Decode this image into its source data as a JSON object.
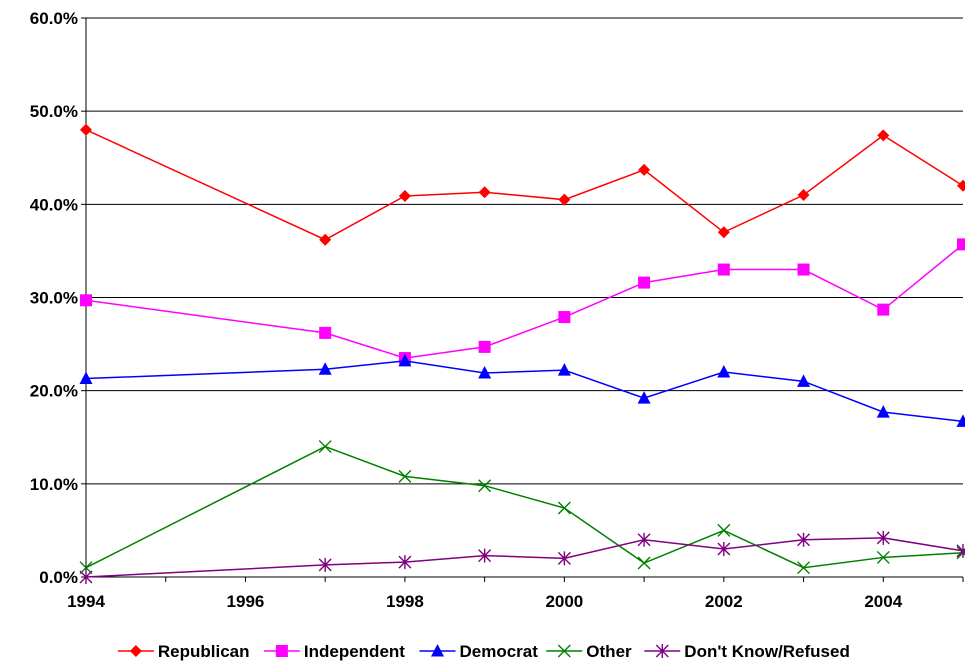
{
  "chart_data": {
    "type": "line",
    "title": "",
    "xlabel": "",
    "ylabel": "",
    "x": [
      1994,
      1997,
      1998,
      1999,
      2000,
      2001,
      2002,
      2003,
      2004,
      2005
    ],
    "xlim": [
      1994,
      2005
    ],
    "x_ticks": [
      1994,
      1996,
      1998,
      2000,
      2002,
      2004
    ],
    "x_tick_labels": [
      "1994",
      "1996",
      "1998",
      "2000",
      "2002",
      "2004"
    ],
    "ylim": [
      0,
      60
    ],
    "y_ticks": [
      0,
      10,
      20,
      30,
      40,
      50,
      60
    ],
    "y_tick_labels": [
      "0.0%",
      "10.0%",
      "20.0%",
      "30.0%",
      "40.0%",
      "50.0%",
      "60.0%"
    ],
    "grid": "horizontal",
    "legend_position": "bottom",
    "series": [
      {
        "name": "Republican",
        "color": "#ff0000",
        "marker": "diamond",
        "values": [
          48.0,
          36.2,
          40.9,
          41.3,
          40.5,
          43.7,
          37.0,
          41.0,
          47.4,
          42.0
        ]
      },
      {
        "name": "Independent",
        "color": "#ff00ff",
        "marker": "square",
        "values": [
          29.7,
          26.2,
          23.5,
          24.7,
          27.9,
          31.6,
          33.0,
          33.0,
          28.7,
          35.7
        ]
      },
      {
        "name": "Democrat",
        "color": "#0000ff",
        "marker": "triangle",
        "values": [
          21.3,
          22.3,
          23.2,
          21.9,
          22.2,
          19.2,
          22.0,
          21.0,
          17.7,
          16.7
        ]
      },
      {
        "name": "Other",
        "color": "#008000",
        "marker": "x",
        "values": [
          1.0,
          14.0,
          10.8,
          9.8,
          7.4,
          1.5,
          5.0,
          1.0,
          2.1,
          2.6
        ]
      },
      {
        "name": "Don't Know/Refused",
        "color": "#800080",
        "marker": "star",
        "values": [
          0.0,
          1.3,
          1.6,
          2.3,
          2.0,
          4.0,
          3.0,
          4.0,
          4.2,
          2.8
        ]
      }
    ]
  }
}
